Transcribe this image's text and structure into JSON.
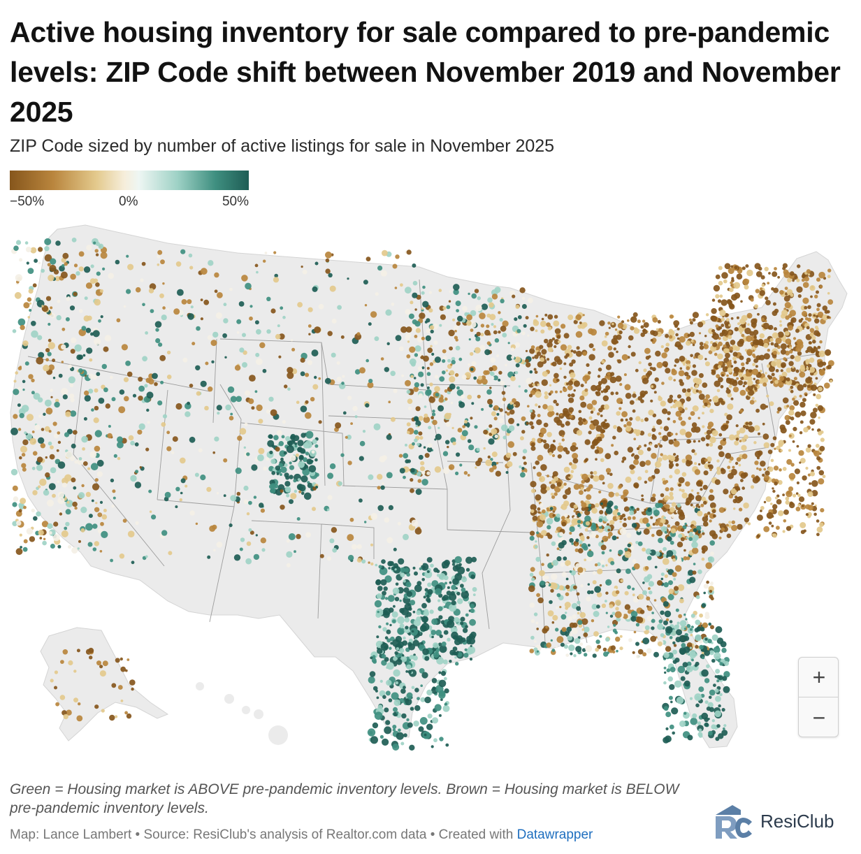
{
  "header": {
    "title": "Active housing inventory for sale compared to pre-pandemic levels: ZIP Code shift between November 2019 and November 2025",
    "subtitle": "ZIP Code sized by number of active listings for sale in November 2025"
  },
  "legend": {
    "min_label": "−50%",
    "mid_label": "0%",
    "max_label": "50%",
    "colors": {
      "strong_below": "#86561c",
      "below": "#b9853d",
      "slightly_below": "#e3c98c",
      "neutral": "#f4f0e6",
      "slightly_above": "#9fd2c6",
      "above": "#3f8f80",
      "strong_above": "#1e5d55"
    }
  },
  "map": {
    "land_color": "#ebebeb",
    "border_color": "#9a9a9a",
    "zoom_in_label": "+",
    "zoom_out_label": "−",
    "zoom_in_icon": "plus-icon",
    "zoom_out_icon": "minus-icon"
  },
  "notes": {
    "text": "Green = Housing market is ABOVE pre-pandemic inventory levels. Brown = Housing market is BELOW pre-pandemic inventory levels."
  },
  "footer": {
    "map_credit": "Map: Lance Lambert",
    "separator": " • ",
    "source": "Source: ResiClub's analysis of Realtor.com data",
    "created_with": "Created with ",
    "tool_link": "Datawrapper"
  },
  "brand": {
    "name": "ResiClub",
    "logo_icon": "resiclub-logo-icon"
  }
}
